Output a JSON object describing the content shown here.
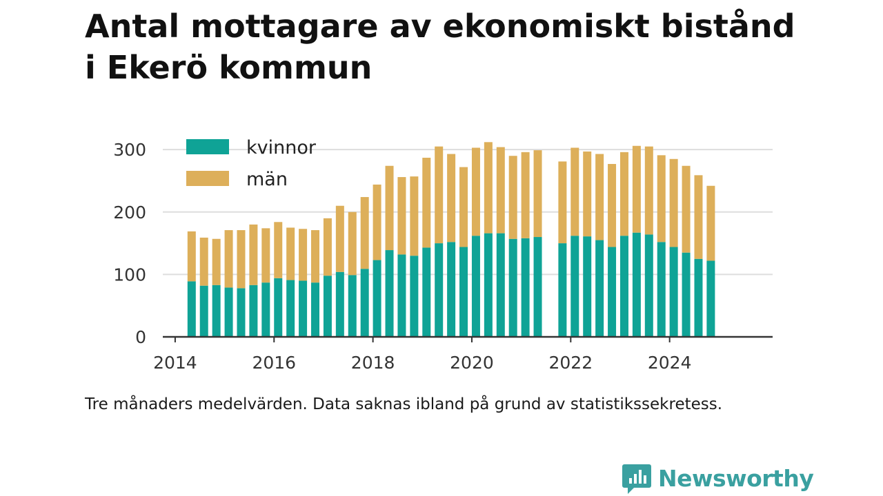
{
  "title_line1": "Antal mottagare av ekonomiskt bistånd",
  "title_line2": "i Ekerö kommun",
  "note": "Tre månaders medelvärden. Data saknas ibland på grund av statistikssekretess.",
  "brand": {
    "name": "Newsworthy",
    "icon": "newsworthy-logo-icon",
    "color": "#3aa0a0"
  },
  "chart_data": {
    "type": "bar",
    "stacked": true,
    "x_axis": {
      "type": "date",
      "ticks": [
        "2014",
        "2016",
        "2018",
        "2020",
        "2022",
        "2024"
      ],
      "range": [
        "2013-10",
        "2026-02"
      ]
    },
    "y_axis": {
      "ticks": [
        0,
        100,
        200,
        300
      ],
      "range": [
        0,
        330
      ]
    },
    "grid": true,
    "legend_position": "top-left",
    "colors": {
      "kvinnor": "#0fa396",
      "män": "#ddaf5a"
    },
    "x": [
      "2014-05",
      "2014-08",
      "2014-11",
      "2015-02",
      "2015-05",
      "2015-08",
      "2015-11",
      "2016-02",
      "2016-05",
      "2016-08",
      "2016-11",
      "2017-02",
      "2017-05",
      "2017-08",
      "2017-11",
      "2018-02",
      "2018-05",
      "2018-08",
      "2018-11",
      "2019-02",
      "2019-05",
      "2019-08",
      "2019-11",
      "2020-02",
      "2020-05",
      "2020-08",
      "2020-11",
      "2021-02",
      "2021-05",
      "2021-08",
      "2021-11",
      "2022-02",
      "2022-05",
      "2022-08",
      "2022-11",
      "2023-02",
      "2023-05",
      "2023-08",
      "2023-11",
      "2024-02",
      "2024-05",
      "2024-08",
      "2024-11"
    ],
    "series": [
      {
        "name": "kvinnor",
        "values": [
          89,
          82,
          83,
          79,
          78,
          83,
          87,
          94,
          91,
          90,
          87,
          98,
          104,
          99,
          109,
          123,
          139,
          132,
          130,
          143,
          150,
          152,
          144,
          162,
          166,
          166,
          157,
          158,
          160,
          null,
          150,
          162,
          161,
          155,
          144,
          162,
          167,
          164,
          152,
          144,
          135,
          125,
          122
        ]
      },
      {
        "name": "män",
        "values": [
          80,
          77,
          74,
          92,
          93,
          97,
          87,
          90,
          84,
          83,
          84,
          92,
          106,
          101,
          115,
          121,
          135,
          124,
          127,
          144,
          155,
          141,
          128,
          141,
          146,
          138,
          133,
          138,
          139,
          null,
          131,
          141,
          136,
          138,
          133,
          134,
          139,
          141,
          139,
          141,
          139,
          134,
          120
        ]
      }
    ]
  }
}
